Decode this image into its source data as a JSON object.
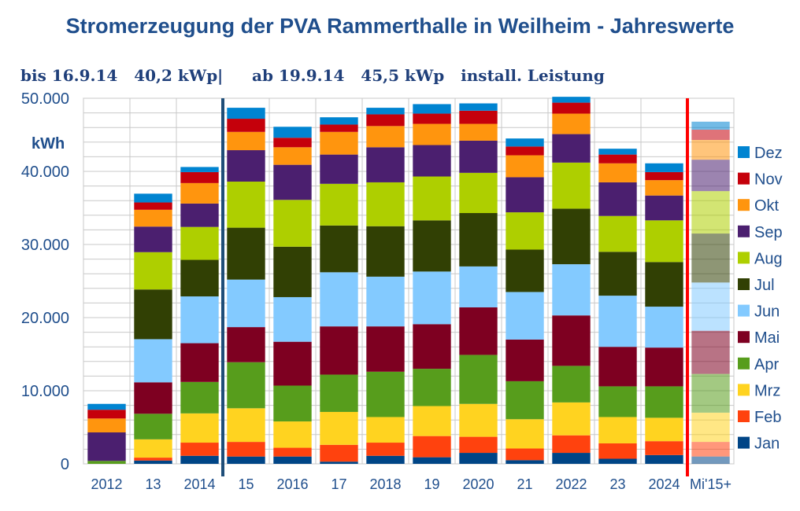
{
  "chart_data": {
    "type": "bar",
    "stacked": true,
    "title": "Stromerzeugung der PVA Rammerthalle in Weilheim - Jahreswerte",
    "subtitle_left": "bis 16.9.14   40,2 kWp",
    "subtitle_sep": "|",
    "subtitle_right": "ab 19.9.14   45,5 kWp   install. Leistung",
    "ylabel": "kWh",
    "ylim": [
      0,
      50000
    ],
    "yticks": [
      0,
      10000,
      20000,
      30000,
      40000,
      50000
    ],
    "ytick_labels": [
      "0",
      "10.000",
      "20.000",
      "30.000",
      "40.000",
      "50.000"
    ],
    "grid": true,
    "legend_position": "right",
    "categories": [
      "2012",
      "13",
      "2014",
      "15",
      "2016",
      "17",
      "2018",
      "19",
      "2020",
      "21",
      "2022",
      "23",
      "2024",
      "Mi'15+"
    ],
    "series": [
      {
        "name": "Jan",
        "color": "#004586",
        "values": [
          0,
          450,
          1100,
          1000,
          1000,
          300,
          1100,
          900,
          1500,
          500,
          1500,
          700,
          1200,
          1000
        ]
      },
      {
        "name": "Feb",
        "color": "#ff420e",
        "values": [
          0,
          400,
          1800,
          2000,
          1200,
          2300,
          1800,
          2900,
          2200,
          1600,
          2400,
          2100,
          1900,
          2000
        ]
      },
      {
        "name": "Mrz",
        "color": "#ffd320",
        "values": [
          0,
          2500,
          4000,
          4600,
          3600,
          4500,
          3500,
          4100,
          4500,
          4000,
          4500,
          3600,
          3200,
          4000
        ]
      },
      {
        "name": "Apr",
        "color": "#579d1c",
        "values": [
          400,
          3500,
          4300,
          6300,
          4900,
          5100,
          6200,
          5100,
          6700,
          5200,
          5000,
          4200,
          4300,
          5300
        ]
      },
      {
        "name": "Mai",
        "color": "#7e0021",
        "values": [
          0,
          4300,
          5300,
          4800,
          6000,
          6600,
          6200,
          6100,
          6500,
          5700,
          6900,
          5400,
          5300,
          5900
        ]
      },
      {
        "name": "Jun",
        "color": "#83caff",
        "values": [
          0,
          5900,
          6400,
          6500,
          6100,
          7400,
          6800,
          7200,
          5600,
          6500,
          7000,
          7000,
          5600,
          6600
        ]
      },
      {
        "name": "Jul",
        "color": "#314004",
        "values": [
          0,
          6800,
          5000,
          7100,
          6900,
          6400,
          6900,
          7000,
          7300,
          5800,
          7600,
          6000,
          6100,
          6700
        ]
      },
      {
        "name": "Aug",
        "color": "#aecf00",
        "values": [
          0,
          5100,
          4500,
          6300,
          6400,
          5700,
          6000,
          6000,
          5500,
          5100,
          6300,
          4900,
          5700,
          5800
        ]
      },
      {
        "name": "Sep",
        "color": "#4b1f6f",
        "values": [
          3900,
          3500,
          3200,
          4300,
          4800,
          4000,
          4800,
          4300,
          4400,
          4800,
          3900,
          4600,
          3400,
          4300
        ]
      },
      {
        "name": "Okt",
        "color": "#ff950e",
        "values": [
          1900,
          2300,
          2800,
          2500,
          2400,
          3100,
          2900,
          2900,
          2300,
          3000,
          2800,
          2600,
          2100,
          2700
        ]
      },
      {
        "name": "Nov",
        "color": "#c5000b",
        "values": [
          1200,
          1000,
          1500,
          1800,
          1300,
          1000,
          1600,
          1400,
          1800,
          1200,
          1500,
          1200,
          1100,
          1400
        ]
      },
      {
        "name": "Dez",
        "color": "#0084d1",
        "values": [
          800,
          1200,
          700,
          1500,
          1500,
          1000,
          900,
          1300,
          1000,
          1100,
          800,
          800,
          1200,
          1100
        ]
      }
    ],
    "faded_categories": [
      "Mi'15+"
    ],
    "vertical_markers": [
      {
        "after_category": "2014",
        "color": "#1f4e79"
      },
      {
        "after_category": "2024",
        "color": "#ff0000"
      }
    ]
  }
}
